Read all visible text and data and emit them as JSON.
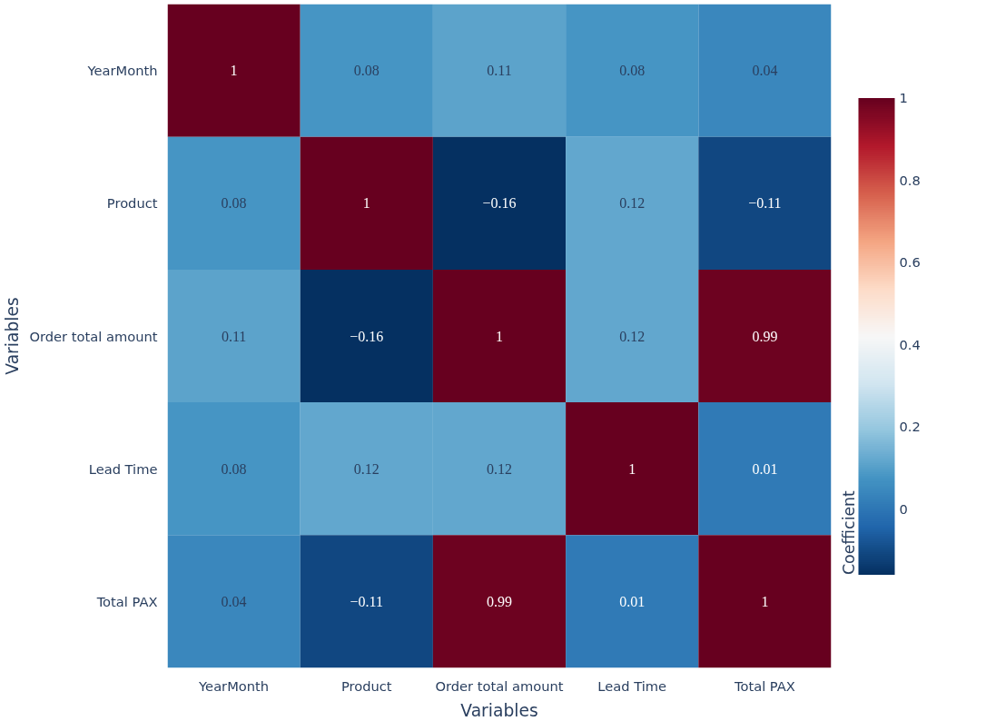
{
  "chart_data": {
    "type": "heatmap",
    "xlabel": "Variables",
    "ylabel": "Variables",
    "clabel": "Coefficient",
    "categories": [
      "YearMonth",
      "Product",
      "Order total amount",
      "Lead Time",
      "Total PAX"
    ],
    "y_categories": [
      "YearMonth",
      "Product",
      "Order total amount",
      "Lead Time",
      "Total PAX"
    ],
    "cells": [
      [
        1,
        0.08,
        0.11,
        0.08,
        0.04
      ],
      [
        0.08,
        1,
        -0.16,
        0.12,
        -0.11
      ],
      [
        0.11,
        -0.16,
        1,
        0.12,
        0.99
      ],
      [
        0.08,
        0.12,
        0.12,
        1,
        0.01
      ],
      [
        0.04,
        -0.11,
        0.99,
        0.01,
        1
      ]
    ],
    "cell_labels": [
      [
        "1",
        "0.08",
        "0.11",
        "0.08",
        "0.04"
      ],
      [
        "0.08",
        "1",
        "−0.16",
        "0.12",
        "−0.11"
      ],
      [
        "0.11",
        "−0.16",
        "1",
        "0.12",
        "0.99"
      ],
      [
        "0.08",
        "0.12",
        "0.12",
        "1",
        "0.01"
      ],
      [
        "0.04",
        "−0.11",
        "0.99",
        "0.01",
        "1"
      ]
    ],
    "clim": [
      -0.16,
      1
    ],
    "cticks": [
      0,
      0.2,
      0.4,
      0.6,
      0.8,
      1
    ]
  }
}
